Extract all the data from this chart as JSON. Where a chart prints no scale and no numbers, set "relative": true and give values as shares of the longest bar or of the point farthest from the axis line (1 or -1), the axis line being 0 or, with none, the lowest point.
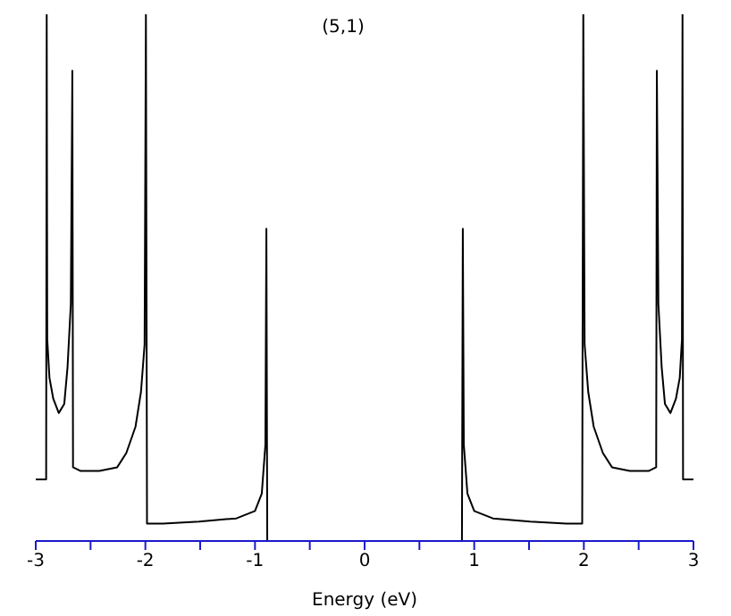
{
  "chart_data": {
    "type": "line",
    "title": "(5,1)",
    "xlabel": "Energy (eV)",
    "relative": true,
    "xlim": [
      -3,
      3
    ],
    "xticks": [
      -3,
      {
        "value": -2.5,
        "label": null
      },
      -2,
      {
        "value": -1.5,
        "label": null
      },
      -1,
      {
        "value": -0.5,
        "label": null
      },
      0,
      {
        "value": 0.5,
        "label": null
      },
      1,
      {
        "value": 1.5,
        "label": null
      },
      2,
      {
        "value": 2.5,
        "label": null
      },
      3
    ],
    "x": [
      -3,
      -2.905,
      -2.9,
      -2.895,
      -2.875,
      -2.84,
      -2.79,
      -2.74,
      -2.71,
      -2.68,
      -2.666,
      -2.66,
      -2.59,
      -2.42,
      -2.257,
      -2.174,
      -2.09,
      -2.04,
      -2.007,
      -1.995,
      -1.985,
      -1.84,
      -1.51,
      -1.17,
      -1.0,
      -0.938,
      -0.905,
      -0.896,
      -0.888,
      0.888,
      0.896,
      0.905,
      0.938,
      1.0,
      1.17,
      1.51,
      1.84,
      1.985,
      1.995,
      2.007,
      2.04,
      2.09,
      2.174,
      2.257,
      2.42,
      2.59,
      2.66,
      2.666,
      2.68,
      2.71,
      2.74,
      2.79,
      2.84,
      2.875,
      2.895,
      2.9,
      2.905,
      3
    ],
    "series": [
      {
        "color": "#000000",
        "values": [
          0.117,
          0.117,
          1,
          0.383,
          0.31,
          0.27,
          0.243,
          0.26,
          0.33,
          0.45,
          0.893,
          0.14,
          0.133,
          0.133,
          0.14,
          0.167,
          0.217,
          0.283,
          0.373,
          1,
          0.033,
          0.033,
          0.037,
          0.043,
          0.057,
          0.09,
          0.183,
          0.593,
          0,
          0,
          0.593,
          0.183,
          0.09,
          0.057,
          0.043,
          0.037,
          0.033,
          0.033,
          1,
          0.373,
          0.283,
          0.217,
          0.167,
          0.14,
          0.133,
          0.133,
          0.14,
          0.893,
          0.45,
          0.33,
          0.26,
          0.243,
          0.27,
          0.31,
          0.383,
          1,
          0.117,
          0.117
        ]
      }
    ]
  }
}
